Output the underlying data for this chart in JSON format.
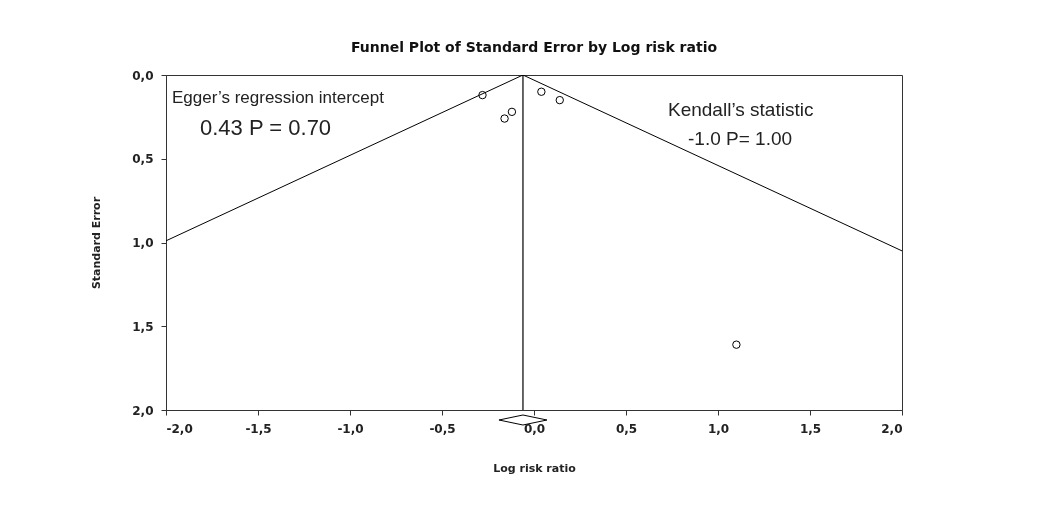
{
  "chart_data": {
    "type": "scatter",
    "title": "Funnel Plot of Standard Error by Log risk ratio",
    "xlabel": "Log risk ratio",
    "ylabel": "Standard Error",
    "xlim": [
      -2.0,
      2.0
    ],
    "ylim": [
      2.0,
      0.0
    ],
    "xticks": [
      {
        "value": -2,
        "label": "-2,0"
      },
      {
        "value": -1.5,
        "label": "-1,5"
      },
      {
        "value": -1,
        "label": "-1,0"
      },
      {
        "value": -0.5,
        "label": "-0,5"
      },
      {
        "value": 0,
        "label": "0,0"
      },
      {
        "value": 0.5,
        "label": "0,5"
      },
      {
        "value": 1,
        "label": "1,0"
      },
      {
        "value": 1.5,
        "label": "1,5"
      },
      {
        "value": 2,
        "label": "2,0"
      }
    ],
    "yticks": [
      {
        "value": 0,
        "label": "0,0"
      },
      {
        "value": 0.5,
        "label": "0,5"
      },
      {
        "value": 1,
        "label": "1,0"
      },
      {
        "value": 1.5,
        "label": "1,5"
      },
      {
        "value": 2,
        "label": "2,0"
      }
    ],
    "series": [
      {
        "color": "#000000",
        "marker": "circle",
        "x": [
          -0.28,
          -0.12,
          -0.16,
          0.04,
          0.14,
          1.1
        ],
        "values": [
          0.12,
          0.22,
          0.26,
          0.1,
          0.15,
          1.61
        ]
      },
      {
        "type": "line",
        "color": "#000000",
        "marker": "none",
        "line_style": "solid",
        "x": [
          -2.0,
          -0.06,
          2.0
        ],
        "values": [
          0.99,
          0.0,
          1.05
        ]
      }
    ],
    "ref_lines": [
      {
        "axis": "x",
        "value": -0.06,
        "color": "#000000"
      }
    ],
    "annotations": [
      "Egger’s regression intercept",
      "0.43 P = 0.70",
      "Kendall’s statistic",
      "-1.0  P= 1.00"
    ],
    "grid": false
  }
}
